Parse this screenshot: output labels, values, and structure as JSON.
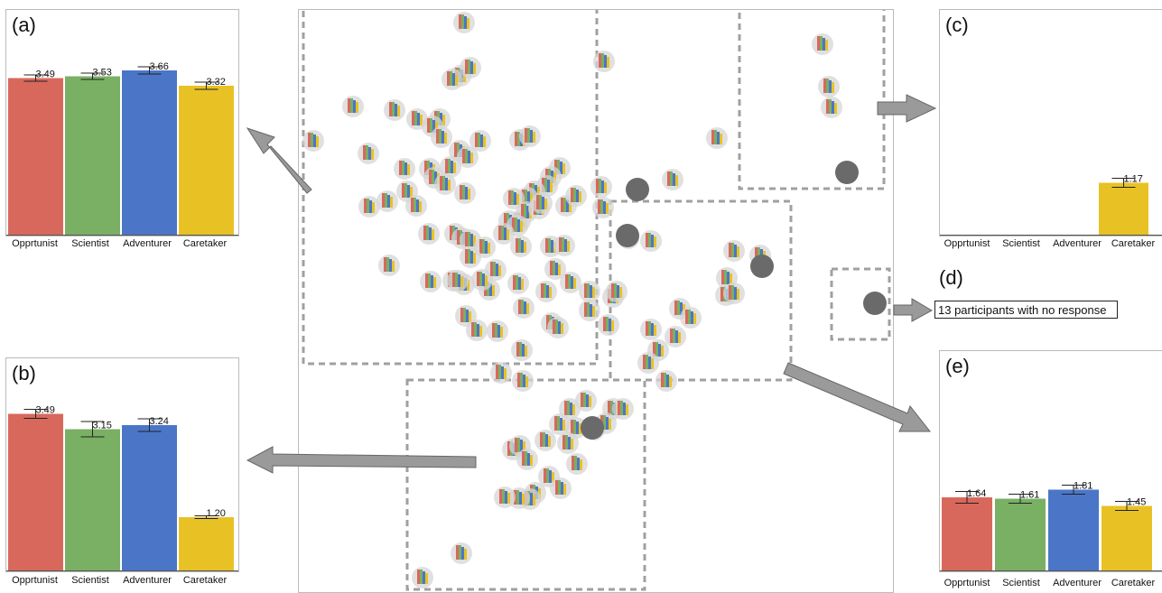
{
  "chart_data": [
    {
      "type": "bar",
      "panel": "(a)",
      "categories": [
        "Opprtunist",
        "Scientist",
        "Adventurer",
        "Caretaker"
      ],
      "values": [
        3.49,
        3.53,
        3.66,
        3.32
      ],
      "error": [
        0.07,
        0.07,
        0.08,
        0.08
      ],
      "ylim": [
        0,
        4.2
      ],
      "colors": [
        "#d9685c",
        "#79b064",
        "#4b76c8",
        "#e8c224"
      ]
    },
    {
      "type": "bar",
      "panel": "(b)",
      "categories": [
        "Opprtunist",
        "Scientist",
        "Adventurer",
        "Caretaker"
      ],
      "values": [
        3.49,
        3.15,
        3.24,
        1.2
      ],
      "error": [
        0.1,
        0.17,
        0.14,
        0.03
      ],
      "ylim": [
        0,
        4.2
      ],
      "colors": [
        "#d9685c",
        "#79b064",
        "#4b76c8",
        "#e8c224"
      ]
    },
    {
      "type": "bar",
      "panel": "(c)",
      "categories": [
        "Opprtunist",
        "Scientist",
        "Adventurer",
        "Caretaker"
      ],
      "values": [
        0,
        0,
        0,
        1.17
      ],
      "error": [
        0,
        0,
        0,
        0.1
      ],
      "labels": [
        "",
        "",
        "",
        "1.17"
      ],
      "ylim": [
        0,
        4.2
      ],
      "colors": [
        "#d9685c",
        "#79b064",
        "#4b76c8",
        "#e8c224"
      ]
    },
    {
      "type": "bar",
      "panel": "(e)",
      "categories": [
        "Opprtunist",
        "Scientist",
        "Adventurer",
        "Caretaker"
      ],
      "values": [
        1.64,
        1.61,
        1.81,
        1.45
      ],
      "error": [
        0.13,
        0.1,
        0.1,
        0.1
      ],
      "ylim": [
        0,
        4.2
      ],
      "colors": [
        "#d9685c",
        "#79b064",
        "#4b76c8",
        "#e8c224"
      ]
    }
  ],
  "panel_d": {
    "label": "(d)",
    "note": "13 participants with no response"
  },
  "scatter_glyphs": [
    [
      513,
      24
    ],
    [
      668,
      67
    ],
    [
      509,
      83
    ],
    [
      520,
      74
    ],
    [
      500,
      87
    ],
    [
      390,
      117
    ],
    [
      436,
      121
    ],
    [
      461,
      131
    ],
    [
      486,
      131
    ],
    [
      478,
      139
    ],
    [
      346,
      155
    ],
    [
      488,
      151
    ],
    [
      531,
      155
    ],
    [
      575,
      154
    ],
    [
      586,
      150
    ],
    [
      407,
      169
    ],
    [
      508,
      166
    ],
    [
      517,
      173
    ],
    [
      498,
      184
    ],
    [
      447,
      186
    ],
    [
      475,
      186
    ],
    [
      480,
      196
    ],
    [
      450,
      211
    ],
    [
      428,
      222
    ],
    [
      408,
      228
    ],
    [
      460,
      227
    ],
    [
      492,
      203
    ],
    [
      514,
      213
    ],
    [
      619,
      185
    ],
    [
      609,
      195
    ],
    [
      605,
      205
    ],
    [
      591,
      211
    ],
    [
      583,
      218
    ],
    [
      568,
      219
    ],
    [
      575,
      244
    ],
    [
      582,
      234
    ],
    [
      596,
      230
    ],
    [
      626,
      227
    ],
    [
      599,
      224
    ],
    [
      563,
      244
    ],
    [
      572,
      249
    ],
    [
      557,
      258
    ],
    [
      430,
      293
    ],
    [
      476,
      311
    ],
    [
      501,
      310
    ],
    [
      474,
      258
    ],
    [
      503,
      258
    ],
    [
      511,
      263
    ],
    [
      520,
      265
    ],
    [
      536,
      273
    ],
    [
      520,
      284
    ],
    [
      576,
      272
    ],
    [
      609,
      272
    ],
    [
      624,
      271
    ],
    [
      614,
      297
    ],
    [
      631,
      312
    ],
    [
      604,
      322
    ],
    [
      573,
      313
    ],
    [
      541,
      320
    ],
    [
      513,
      314
    ],
    [
      506,
      310
    ],
    [
      533,
      309
    ],
    [
      548,
      298
    ],
    [
      515,
      349
    ],
    [
      527,
      365
    ],
    [
      550,
      366
    ],
    [
      579,
      340
    ],
    [
      610,
      357
    ],
    [
      617,
      362
    ],
    [
      652,
      343
    ],
    [
      652,
      322
    ],
    [
      678,
      328
    ],
    [
      682,
      322
    ],
    [
      673,
      359
    ],
    [
      637,
      216
    ],
    [
      665,
      206
    ],
    [
      667,
      229
    ],
    [
      706,
      208
    ],
    [
      744,
      198
    ],
    [
      793,
      152
    ],
    [
      695,
      263
    ],
    [
      720,
      266
    ],
    [
      812,
      277
    ],
    [
      841,
      282
    ],
    [
      804,
      307
    ],
    [
      803,
      326
    ],
    [
      812,
      324
    ],
    [
      752,
      341
    ],
    [
      764,
      351
    ],
    [
      720,
      364
    ],
    [
      747,
      372
    ],
    [
      728,
      387
    ],
    [
      717,
      401
    ],
    [
      577,
      387
    ],
    [
      554,
      412
    ],
    [
      578,
      421
    ],
    [
      737,
      421
    ],
    [
      648,
      443
    ],
    [
      630,
      452
    ],
    [
      678,
      452
    ],
    [
      689,
      452
    ],
    [
      619,
      469
    ],
    [
      637,
      473
    ],
    [
      657,
      475
    ],
    [
      670,
      468
    ],
    [
      603,
      487
    ],
    [
      628,
      490
    ],
    [
      567,
      497
    ],
    [
      575,
      493
    ],
    [
      583,
      508
    ],
    [
      638,
      513
    ],
    [
      607,
      527
    ],
    [
      592,
      545
    ],
    [
      586,
      552
    ],
    [
      574,
      551
    ],
    [
      558,
      550
    ],
    [
      620,
      540
    ],
    [
      510,
      612
    ],
    [
      467,
      639
    ],
    [
      910,
      48
    ],
    [
      917,
      95
    ],
    [
      920,
      118
    ]
  ],
  "dark_nodes": [
    [
      705,
      209
    ],
    [
      694,
      260
    ],
    [
      843,
      294
    ],
    [
      937,
      190
    ],
    [
      968,
      335
    ],
    [
      655,
      473
    ]
  ],
  "regions": [
    [
      335,
      8,
      660,
      402
    ],
    [
      818,
      8,
      978,
      208
    ],
    [
      675,
      222,
      875,
      420
    ],
    [
      450,
      420,
      713,
      652
    ],
    [
      920,
      297,
      984,
      375
    ]
  ]
}
